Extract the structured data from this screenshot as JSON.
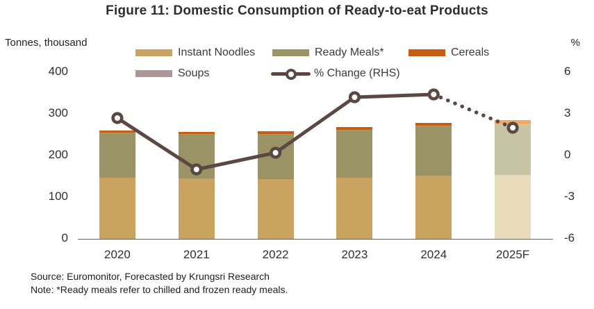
{
  "title": "Figure 11: Domestic Consumption of Ready-to-eat Products",
  "left_axis_unit": "Tonnes, thousand",
  "right_axis_unit": "%",
  "legend": [
    {
      "label": "Instant Noodles",
      "swatch": "bar"
    },
    {
      "label": "Ready Meals*",
      "swatch": "bar"
    },
    {
      "label": "Cereals",
      "swatch": "bar"
    },
    {
      "label": "Soups",
      "swatch": "bar"
    },
    {
      "label": "% Change (RHS)",
      "swatch": "line"
    }
  ],
  "source": "Source: Euromonitor, Forecasted by Krungsri Research",
  "note": "Note: *Ready meals refer to chilled and frozen ready meals.",
  "colors": {
    "series": {
      "Instant Noodles": {
        "normal": "#C9A35F",
        "forecast": "#E9DCBB"
      },
      "Ready Meals*": {
        "normal": "#9A9366",
        "forecast": "#C7C4A6"
      },
      "Soups": {
        "normal": "#AE959A",
        "forecast": "#D8CACC"
      },
      "Cereals": {
        "normal": "#C75D12",
        "forecast": "#F2A765"
      }
    },
    "line": "#5B4843",
    "axis": "#6d6259",
    "text": "#2f2f2f"
  },
  "chart_data": {
    "type": "bar",
    "subtype": "stacked bars with line overlay on secondary axis",
    "title": "Figure 11: Domestic Consumption of Ready-to-eat Products",
    "categories": [
      "2020",
      "2021",
      "2022",
      "2023",
      "2024",
      "2025F"
    ],
    "series": [
      {
        "name": "Instant Noodles",
        "type": "bar",
        "axis": "left",
        "values": [
          146,
          145,
          143,
          146,
          151,
          153
        ]
      },
      {
        "name": "Ready Meals*",
        "type": "bar",
        "axis": "left",
        "values": [
          108,
          106,
          108,
          115,
          119,
          121
        ]
      },
      {
        "name": "Soups",
        "type": "bar",
        "axis": "left",
        "values": [
          1,
          1,
          1,
          1,
          1,
          1
        ]
      },
      {
        "name": "Cereals",
        "type": "bar",
        "axis": "left",
        "values": [
          5,
          5,
          6,
          7,
          8,
          10
        ]
      },
      {
        "name": "% Change (RHS)",
        "type": "line",
        "axis": "right",
        "values": [
          2.7,
          -1.0,
          0.2,
          4.2,
          4.4,
          2.0
        ],
        "solid_through_index": 4,
        "dotted_from_index": 4
      }
    ],
    "bar_totals": [
      260,
      257,
      258,
      269,
      279,
      285
    ],
    "left_axis": {
      "label": "Tonnes, thousand",
      "ticks": [
        0,
        100,
        200,
        300,
        400
      ],
      "range": [
        0,
        400
      ]
    },
    "right_axis": {
      "label": "%",
      "ticks": [
        -6,
        -3,
        0,
        3,
        6
      ],
      "range": [
        -6,
        6
      ]
    },
    "forecast_category": "2025F",
    "grid": false,
    "legend_position": "top"
  }
}
